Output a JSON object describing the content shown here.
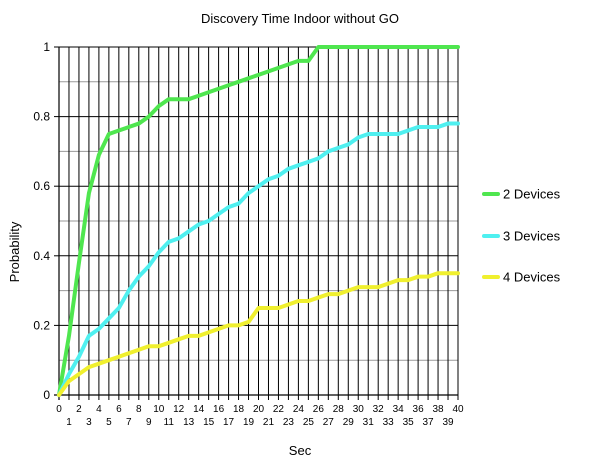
{
  "chart_data": {
    "type": "line",
    "title": "Discovery Time Indoor without GO",
    "xlabel": "Sec",
    "ylabel": "Probability",
    "xlim": [
      0,
      40
    ],
    "ylim": [
      0,
      1
    ],
    "x_ticks_top": [
      "0",
      "2",
      "4",
      "6",
      "8",
      "10",
      "12",
      "14",
      "16",
      "18",
      "20",
      "22",
      "24",
      "26",
      "28",
      "30",
      "32",
      "34",
      "36",
      "38",
      "40"
    ],
    "x_ticks_bottom": [
      "1",
      "3",
      "5",
      "7",
      "9",
      "11",
      "13",
      "15",
      "17",
      "19",
      "21",
      "23",
      "25",
      "27",
      "29",
      "31",
      "33",
      "35",
      "37",
      "39"
    ],
    "y_ticks": [
      "0",
      "0.2",
      "0.4",
      "0.6",
      "0.8",
      "1"
    ],
    "grid": true,
    "legend_position": "right",
    "x": [
      0,
      1,
      2,
      3,
      4,
      5,
      6,
      7,
      8,
      9,
      10,
      11,
      12,
      13,
      14,
      15,
      16,
      17,
      18,
      19,
      20,
      21,
      22,
      23,
      24,
      25,
      26,
      27,
      28,
      29,
      30,
      31,
      32,
      33,
      34,
      35,
      36,
      37,
      38,
      39,
      40
    ],
    "series": [
      {
        "name": "2 Devices",
        "color": "#4fe64f",
        "values": [
          0,
          0.17,
          0.38,
          0.58,
          0.69,
          0.75,
          0.76,
          0.77,
          0.78,
          0.8,
          0.83,
          0.85,
          0.85,
          0.85,
          0.86,
          0.87,
          0.88,
          0.89,
          0.9,
          0.91,
          0.92,
          0.93,
          0.94,
          0.95,
          0.96,
          0.96,
          1.0,
          1.0,
          1.0,
          1.0,
          1.0,
          1.0,
          1.0,
          1.0,
          1.0,
          1.0,
          1.0,
          1.0,
          1.0,
          1.0,
          1.0
        ]
      },
      {
        "name": "3 Devices",
        "color": "#4ff0f0",
        "values": [
          0,
          0.06,
          0.11,
          0.17,
          0.19,
          0.22,
          0.25,
          0.3,
          0.34,
          0.37,
          0.41,
          0.44,
          0.45,
          0.47,
          0.49,
          0.5,
          0.52,
          0.54,
          0.55,
          0.58,
          0.6,
          0.62,
          0.63,
          0.65,
          0.66,
          0.67,
          0.68,
          0.7,
          0.71,
          0.72,
          0.74,
          0.75,
          0.75,
          0.75,
          0.75,
          0.76,
          0.77,
          0.77,
          0.77,
          0.78,
          0.78
        ]
      },
      {
        "name": "4 Devices",
        "color": "#f0f02e",
        "values": [
          0,
          0.04,
          0.06,
          0.08,
          0.09,
          0.1,
          0.11,
          0.12,
          0.13,
          0.14,
          0.14,
          0.15,
          0.16,
          0.17,
          0.17,
          0.18,
          0.19,
          0.2,
          0.2,
          0.21,
          0.25,
          0.25,
          0.25,
          0.26,
          0.27,
          0.27,
          0.28,
          0.29,
          0.29,
          0.3,
          0.31,
          0.31,
          0.31,
          0.32,
          0.33,
          0.33,
          0.34,
          0.34,
          0.35,
          0.35,
          0.35
        ]
      }
    ]
  }
}
